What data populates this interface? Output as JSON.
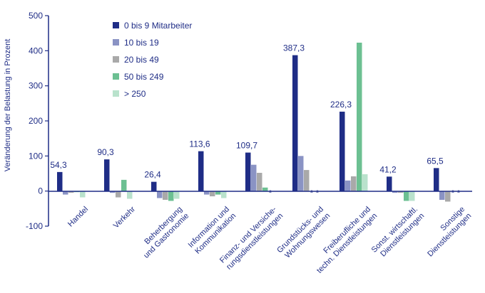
{
  "chart_data": {
    "type": "bar",
    "ylabel": "Veränderung der Belastung in Prozent",
    "ylim": [
      -100,
      500
    ],
    "yticks": [
      -100,
      0,
      100,
      200,
      300,
      400,
      500
    ],
    "grid": false,
    "legend_position": "top-left",
    "categories": [
      "Handel",
      "Verkehr",
      "Beherbergung und Gastronomie",
      "Information und Kommunikation",
      "Finanz- und Versicherungsdienstleistungen",
      "Grundstücks- und Wohnungswesen",
      "Freiberufliche und techn. Dienstleistungen",
      "Sonst. wirtschaftl. Dienstleistungen",
      "Sonstige Dienstleistungen"
    ],
    "category_label_lines": [
      [
        "Handel"
      ],
      [
        "Verkehr"
      ],
      [
        "Beherbergung",
        "und Gastronomie"
      ],
      [
        "Information und",
        "Kommunikation"
      ],
      [
        "Finanz- und Versiche-",
        "rungsdienstleistungen"
      ],
      [
        "Grundstücks- und",
        "Wohnungswesen"
      ],
      [
        "Freiberufliche und",
        "techn. Dienstleistungen"
      ],
      [
        "Sonst. wirtschaftl.",
        "Dienstleistungen"
      ],
      [
        "Sonstige",
        "Dienstleistungen"
      ]
    ],
    "series": [
      {
        "name": "0 bis 9 Mitarbeiter",
        "color": "#1f2d86",
        "values": [
          54.3,
          90.3,
          26.4,
          113.6,
          109.7,
          387.3,
          226.3,
          41.2,
          65.5
        ]
      },
      {
        "name": "10 bis 19",
        "color": "#8a93c4",
        "values": [
          -10,
          -5,
          -20,
          -10,
          75,
          100,
          30,
          -5,
          -25
        ]
      },
      {
        "name": "20 bis 49",
        "color": "#a9a9a9",
        "values": [
          -5,
          -18,
          -25,
          -15,
          52,
          60,
          42,
          -5,
          -30
        ]
      },
      {
        "name": "50 bis 249",
        "color": "#6cc092",
        "values": [
          -3,
          32,
          -28,
          -10,
          10,
          null,
          423,
          -28,
          null
        ]
      },
      {
        "name": "> 250",
        "color": "#b9e2cc",
        "values": [
          -18,
          -22,
          -22,
          -20,
          null,
          null,
          48,
          -28,
          null
        ]
      }
    ],
    "value_labels": [
      "54,3",
      "90,3",
      "26,4",
      "113,6",
      "109,7",
      "387,3",
      "226,3",
      "41,2",
      "65,5"
    ],
    "missing_marker": "*"
  }
}
